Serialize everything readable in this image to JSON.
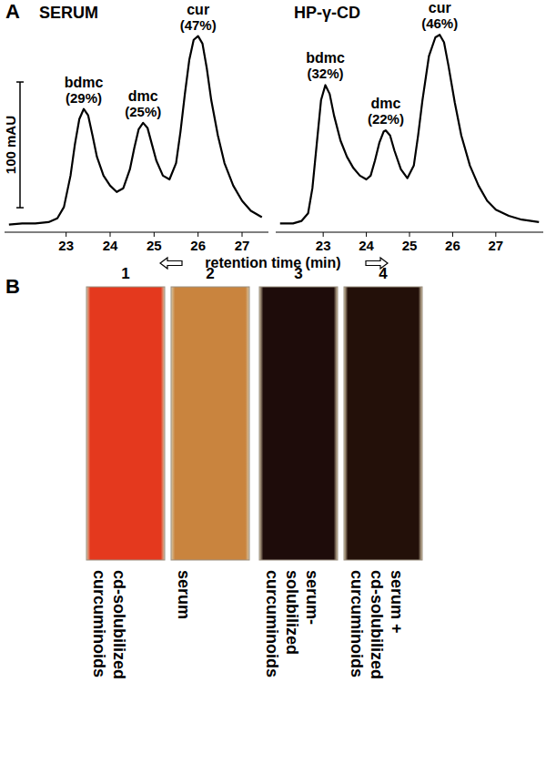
{
  "panel_a": {
    "label": "A",
    "xlabel": "retention time (min)"
  },
  "chart_data": [
    {
      "type": "line",
      "title": "SERUM",
      "color": "#000000",
      "tick_labels": "x",
      "xlim": [
        21.6,
        27.6
      ],
      "xticks": [
        23,
        24,
        25,
        26,
        27
      ],
      "ylim": [
        -5,
        175
      ],
      "x": [
        21.7,
        22.0,
        22.3,
        22.6,
        22.8,
        22.95,
        23.1,
        23.2,
        23.3,
        23.4,
        23.5,
        23.6,
        23.7,
        23.85,
        24.0,
        24.15,
        24.3,
        24.45,
        24.55,
        24.65,
        24.75,
        24.85,
        24.95,
        25.05,
        25.2,
        25.35,
        25.5,
        25.6,
        25.7,
        25.8,
        25.9,
        26.0,
        26.1,
        26.2,
        26.3,
        26.45,
        26.6,
        26.8,
        27.0,
        27.2,
        27.45
      ],
      "values": [
        1,
        2,
        2,
        3,
        6,
        15,
        40,
        65,
        85,
        93,
        88,
        72,
        55,
        40,
        32,
        27,
        30,
        45,
        62,
        77,
        82,
        78,
        65,
        52,
        40,
        37,
        50,
        75,
        105,
        132,
        148,
        151,
        145,
        125,
        100,
        72,
        50,
        32,
        20,
        12,
        7
      ],
      "scale_bar": {
        "value": 100,
        "label": "100 mAU"
      },
      "annotations": [
        {
          "text": "bdmc",
          "x": 23.4,
          "value": 29,
          "label": "(29%)"
        },
        {
          "text": "dmc",
          "x": 24.75,
          "value": 25,
          "label": "(25%)"
        },
        {
          "text": "cur",
          "x": 26.0,
          "value": 47,
          "label": "(47%)"
        }
      ]
    },
    {
      "type": "line",
      "title": "HP-γ-CD",
      "color": "#000000",
      "tick_labels": "x",
      "xlim": [
        21.9,
        28.1
      ],
      "xticks": [
        23,
        24,
        25,
        26,
        27
      ],
      "ylim": [
        -5,
        175
      ],
      "x": [
        22.0,
        22.3,
        22.5,
        22.65,
        22.75,
        22.85,
        22.95,
        23.05,
        23.15,
        23.25,
        23.4,
        23.55,
        23.7,
        23.85,
        24.0,
        24.1,
        24.2,
        24.3,
        24.4,
        24.45,
        24.55,
        24.65,
        24.8,
        24.95,
        25.1,
        25.2,
        25.3,
        25.45,
        25.6,
        25.7,
        25.8,
        25.9,
        26.05,
        26.2,
        26.4,
        26.6,
        26.8,
        27.0,
        27.3,
        27.6,
        28.0
      ],
      "values": [
        2,
        2,
        4,
        10,
        30,
        65,
        100,
        112,
        105,
        88,
        68,
        55,
        46,
        40,
        37,
        40,
        52,
        66,
        75,
        76,
        72,
        60,
        45,
        38,
        48,
        72,
        100,
        135,
        150,
        152,
        146,
        128,
        98,
        72,
        48,
        32,
        20,
        13,
        8,
        5,
        3
      ],
      "annotations": [
        {
          "text": "bdmc",
          "x": 23.05,
          "value": 32,
          "label": "(32%)"
        },
        {
          "text": "dmc",
          "x": 24.45,
          "value": 22,
          "label": "(22%)"
        },
        {
          "text": "cur",
          "x": 25.7,
          "value": 46,
          "label": "(46%)"
        }
      ]
    }
  ],
  "panel_b": {
    "label": "B",
    "cuvettes": [
      {
        "number": 1,
        "color": "#e4391e",
        "lines": [
          "cd-solubilized",
          "curcuminoids"
        ]
      },
      {
        "number": 2,
        "color": "#c9843e",
        "lines": [
          "serum"
        ]
      },
      {
        "number": 3,
        "color": "#1e0c0a",
        "lines": [
          "serum-",
          "solubilized",
          "curcuminoids"
        ]
      },
      {
        "number": 4,
        "color": "#231009",
        "lines": [
          "serum +",
          "cd-solubilized",
          "curcuminoids"
        ]
      }
    ]
  }
}
